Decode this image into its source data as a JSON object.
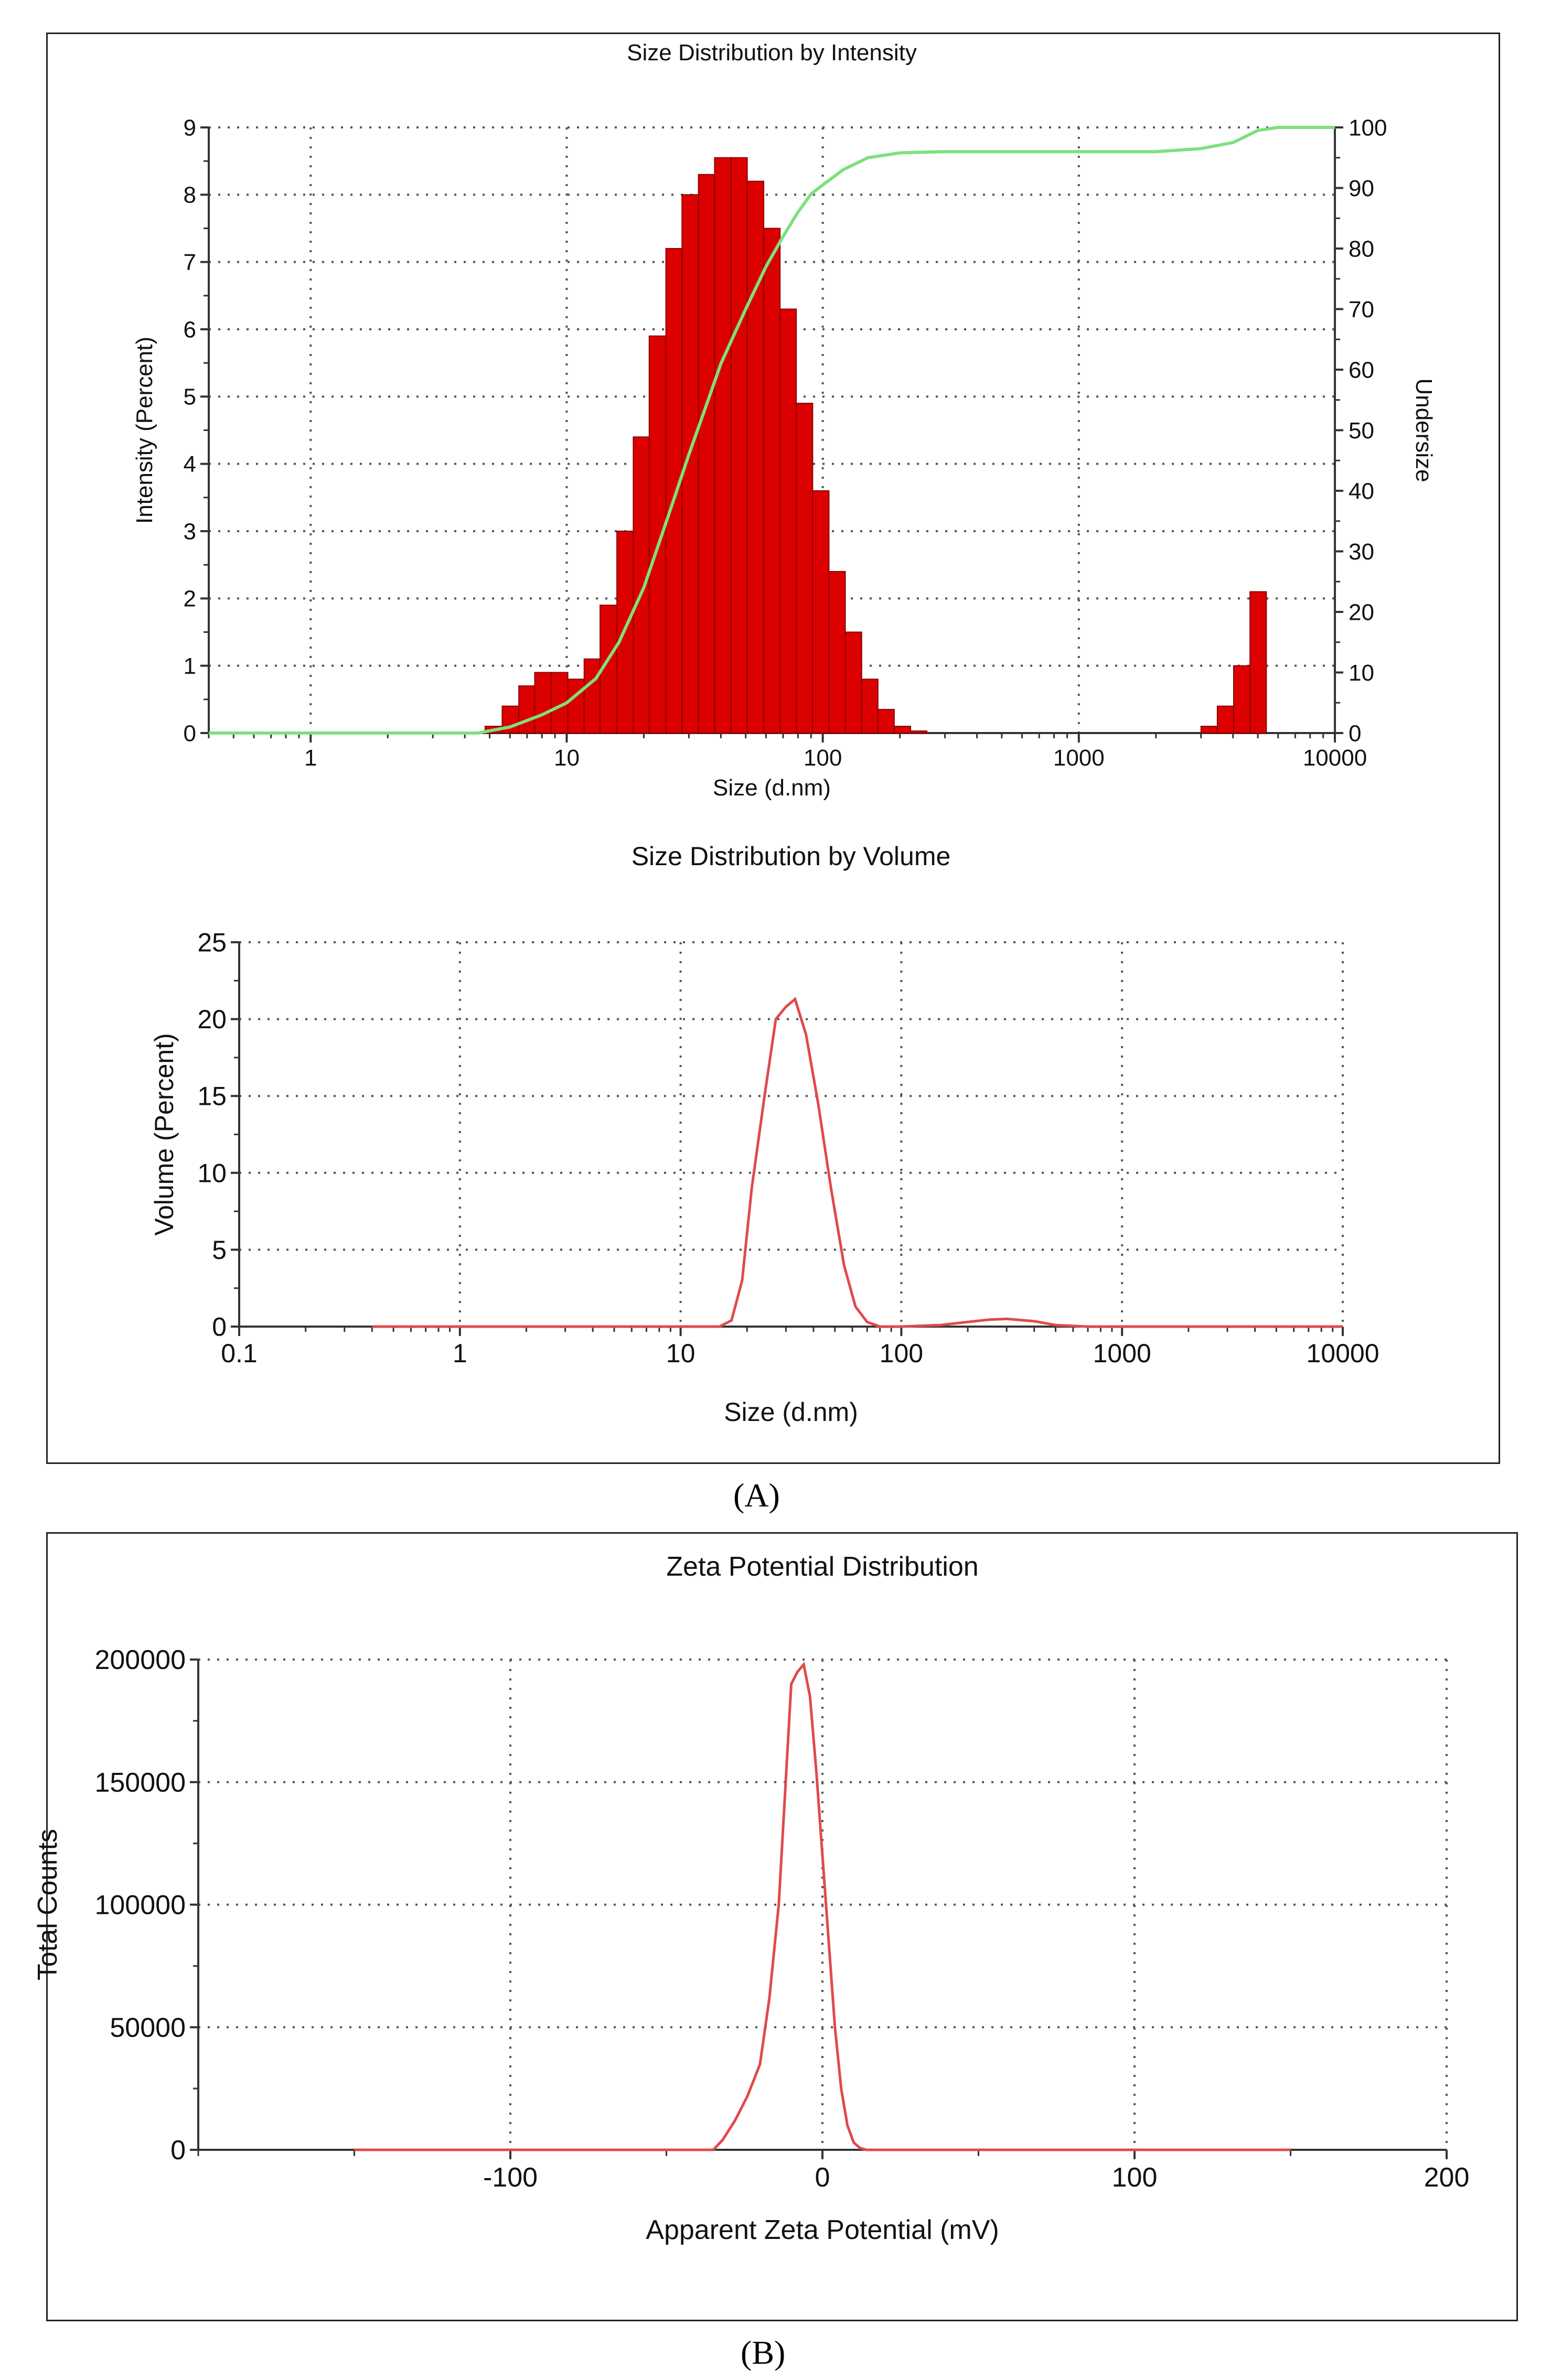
{
  "panel_labels": {
    "a": "(A)",
    "b": "(B)"
  },
  "colors": {
    "bars": "#dd0000",
    "bar_edge": "#8a0000",
    "undersize_line": "#7ee07e",
    "volume_line": "#e04a4a",
    "zeta_line": "#e04a4a",
    "grid": "#555555",
    "axis": "#333333"
  },
  "chart_data": [
    {
      "id": "intensity",
      "type": "bar",
      "title": "Size Distribution by Intensity",
      "xlabel": "Size (d.nm)",
      "ylabel": "Intensity (Percent)",
      "y2label": "Undersize",
      "xscale": "log",
      "xlim": [
        0.4,
        10000
      ],
      "ylim": [
        0,
        9
      ],
      "y2lim": [
        0,
        100
      ],
      "x_ticks": [
        1,
        10,
        100,
        1000,
        10000
      ],
      "x_tick_labels": [
        "1",
        "10",
        "100",
        "1000",
        "10000"
      ],
      "y_ticks": [
        0,
        1,
        2,
        3,
        4,
        5,
        6,
        7,
        8,
        9
      ],
      "y_tick_labels": [
        "0",
        "1",
        "2",
        "3",
        "4",
        "5",
        "6",
        "7",
        "8",
        "9"
      ],
      "y2_ticks": [
        0,
        10,
        20,
        30,
        40,
        50,
        60,
        70,
        80,
        90,
        100
      ],
      "y2_tick_labels": [
        "0",
        "10",
        "20",
        "30",
        "40",
        "50",
        "60",
        "70",
        "80",
        "90",
        "100"
      ],
      "grid": true,
      "bars": [
        {
          "x0": 4.8,
          "x1": 5.6,
          "value": 0.1
        },
        {
          "x0": 5.6,
          "x1": 6.5,
          "value": 0.4
        },
        {
          "x0": 6.5,
          "x1": 7.5,
          "value": 0.7
        },
        {
          "x0": 7.5,
          "x1": 8.7,
          "value": 0.9
        },
        {
          "x0": 8.7,
          "x1": 10.1,
          "value": 0.9
        },
        {
          "x0": 10.1,
          "x1": 11.7,
          "value": 0.8
        },
        {
          "x0": 11.7,
          "x1": 13.5,
          "value": 1.1
        },
        {
          "x0": 13.5,
          "x1": 15.7,
          "value": 1.9
        },
        {
          "x0": 15.7,
          "x1": 18.2,
          "value": 3.0
        },
        {
          "x0": 18.2,
          "x1": 21.0,
          "value": 4.4
        },
        {
          "x0": 21.0,
          "x1": 24.4,
          "value": 5.9
        },
        {
          "x0": 24.4,
          "x1": 28.2,
          "value": 7.2
        },
        {
          "x0": 28.2,
          "x1": 32.7,
          "value": 8.0
        },
        {
          "x0": 32.7,
          "x1": 37.8,
          "value": 8.3
        },
        {
          "x0": 37.8,
          "x1": 43.8,
          "value": 8.55
        },
        {
          "x0": 43.8,
          "x1": 50.7,
          "value": 8.55
        },
        {
          "x0": 50.7,
          "x1": 58.8,
          "value": 8.2
        },
        {
          "x0": 58.8,
          "x1": 68.1,
          "value": 7.5
        },
        {
          "x0": 68.1,
          "x1": 78.8,
          "value": 6.3
        },
        {
          "x0": 78.8,
          "x1": 91.3,
          "value": 4.9
        },
        {
          "x0": 91.3,
          "x1": 105.7,
          "value": 3.6
        },
        {
          "x0": 105.7,
          "x1": 122.4,
          "value": 2.4
        },
        {
          "x0": 122.4,
          "x1": 141.8,
          "value": 1.5
        },
        {
          "x0": 141.8,
          "x1": 164.2,
          "value": 0.8
        },
        {
          "x0": 164.2,
          "x1": 190.1,
          "value": 0.35
        },
        {
          "x0": 190.1,
          "x1": 220.2,
          "value": 0.1
        },
        {
          "x0": 220.2,
          "x1": 255.0,
          "value": 0.03
        },
        {
          "x0": 3000,
          "x1": 3475,
          "value": 0.1
        },
        {
          "x0": 3475,
          "x1": 4024,
          "value": 0.4
        },
        {
          "x0": 4024,
          "x1": 4661,
          "value": 1.0
        },
        {
          "x0": 4661,
          "x1": 5398,
          "value": 2.1
        }
      ],
      "undersize_curve": {
        "name": "Undersize",
        "x": [
          0.4,
          4.5,
          6,
          8,
          10,
          13,
          16,
          20,
          25,
          30,
          35,
          40,
          50,
          60,
          70,
          80,
          90,
          100,
          120,
          150,
          200,
          300,
          500,
          1000,
          2000,
          3000,
          4000,
          5000,
          6000,
          10000
        ],
        "y": [
          0,
          0,
          1,
          3,
          5,
          9,
          15,
          24,
          36,
          46,
          54,
          61,
          70,
          77,
          82,
          86,
          89,
          90.5,
          93,
          95,
          95.8,
          96,
          96,
          96,
          96,
          96.5,
          97.5,
          99.5,
          100,
          100
        ]
      }
    },
    {
      "id": "volume",
      "type": "line",
      "title": "Size Distribution by Volume",
      "xlabel": "Size (d.nm)",
      "ylabel": "Volume (Percent)",
      "xscale": "log",
      "xlim": [
        0.1,
        10000
      ],
      "ylim": [
        0,
        25
      ],
      "x_ticks": [
        0.1,
        1,
        10,
        100,
        1000,
        10000
      ],
      "x_tick_labels": [
        "0.1",
        "1",
        "10",
        "100",
        "1000",
        "10000"
      ],
      "y_ticks": [
        0,
        5,
        10,
        15,
        20,
        25
      ],
      "y_tick_labels": [
        "0",
        "5",
        "10",
        "15",
        "20",
        "25"
      ],
      "grid": true,
      "series": [
        {
          "x": [
            0.4,
            15,
            17,
            19,
            21,
            24,
            27,
            30,
            33,
            37,
            42,
            48,
            55,
            62,
            70,
            80,
            100,
            150,
            200,
            250,
            300,
            400,
            500,
            700,
            1000,
            10000
          ],
          "y": [
            0,
            0,
            0.4,
            3,
            9,
            15,
            20,
            20.8,
            21.3,
            19,
            14.5,
            9,
            4,
            1.3,
            0.3,
            0,
            0,
            0.1,
            0.3,
            0.45,
            0.5,
            0.35,
            0.1,
            0,
            0,
            0
          ]
        }
      ]
    },
    {
      "id": "zeta",
      "type": "line",
      "title": "Zeta Potential Distribution",
      "xlabel": "Apparent Zeta Potential (mV)",
      "ylabel": "Total Counts",
      "xlim": [
        -200,
        200
      ],
      "ylim": [
        0,
        200000
      ],
      "x_ticks": [
        -100,
        0,
        100,
        200
      ],
      "x_tick_labels": [
        "-100",
        "0",
        "100",
        "200"
      ],
      "y_ticks": [
        0,
        50000,
        100000,
        150000,
        200000
      ],
      "y_tick_labels": [
        "0",
        "50000",
        "100000",
        "150000",
        "200000"
      ],
      "grid": true,
      "series": [
        {
          "x": [
            -150,
            -35,
            -32,
            -28,
            -24,
            -20,
            -17,
            -14,
            -12,
            -10,
            -8,
            -6,
            -4,
            -2,
            0,
            2,
            4,
            6,
            8,
            10,
            12,
            14,
            16,
            20,
            150
          ],
          "y": [
            0,
            0,
            4000,
            12000,
            22000,
            35000,
            62000,
            100000,
            145000,
            190000,
            195000,
            198000,
            185000,
            155000,
            120000,
            85000,
            50000,
            25000,
            10000,
            3000,
            800,
            0,
            0,
            0,
            0
          ]
        }
      ]
    }
  ]
}
